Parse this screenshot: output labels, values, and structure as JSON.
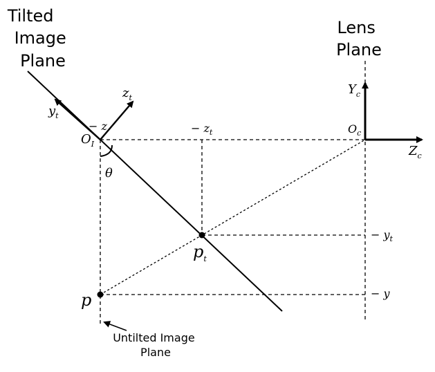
{
  "labels": {
    "tilted_plane": [
      "Tilted",
      "Image",
      "Plane"
    ],
    "lens_plane": [
      "Lens",
      "Plane"
    ],
    "untilted_plane": [
      "Untilted Image",
      "Plane"
    ],
    "y_t": {
      "base": "y",
      "sub": "t"
    },
    "z_t": {
      "base": "z",
      "sub": "t"
    },
    "neg_z": "− z",
    "O_I": {
      "base": "O",
      "sub": "I"
    },
    "theta": "θ",
    "neg_z_t": {
      "base": "− z",
      "sub": "t"
    },
    "Y_c": {
      "base": "Y",
      "sub": "c"
    },
    "O_c": {
      "base": "O",
      "sub": "c"
    },
    "Z_c": {
      "base": "Z",
      "sub": "c"
    },
    "p_t": {
      "base": "p",
      "sub": "t"
    },
    "p": "p",
    "neg_y_t": {
      "base": "− y",
      "sub": "t"
    },
    "neg_y": "− y"
  }
}
